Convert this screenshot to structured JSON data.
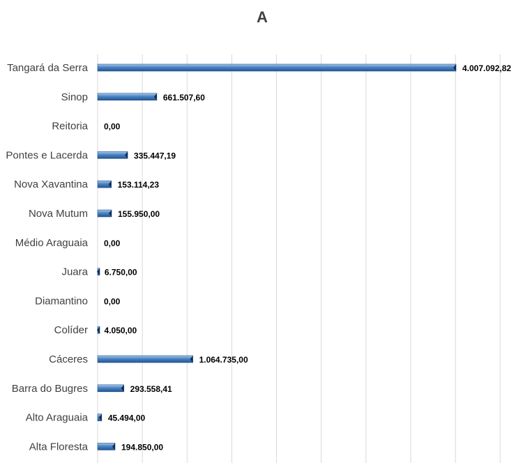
{
  "chart_data": {
    "type": "bar",
    "orientation": "horizontal",
    "title": "A",
    "xlabel": "",
    "ylabel": "",
    "grid": true,
    "legend": "none",
    "xlim": [
      0,
      4500000
    ],
    "categories": [
      "Tangará da Serra",
      "Sinop",
      "Reitoria",
      "Pontes e Lacerda",
      "Nova Xavantina",
      "Nova Mutum",
      "Médio Araguaia",
      "Juara",
      "Diamantino",
      "Colíder",
      "Cáceres",
      "Barra do Bugres",
      "Alto Araguaia",
      "Alta Floresta"
    ],
    "values": [
      4007092.82,
      661507.6,
      0,
      335447.19,
      153114.23,
      155950.0,
      0,
      6750.0,
      0,
      4050.0,
      1064735.0,
      293558.41,
      45494.0,
      194850.0
    ],
    "labels": [
      "4.007.092,82",
      "661.507,60",
      "0,00",
      "335.447,19",
      "153.114,23",
      "155.950,00",
      "0,00",
      "6.750,00",
      "0,00",
      "4.050,00",
      "1.064.735,00",
      "293.558,41",
      "45.494,00",
      "194.850,00"
    ],
    "colors": {
      "bar": "#4a84c4",
      "bar_light": "#a9c8ec",
      "bar_dark": "#23558f",
      "grid": "#d9d9d9",
      "text": "#404040"
    }
  }
}
